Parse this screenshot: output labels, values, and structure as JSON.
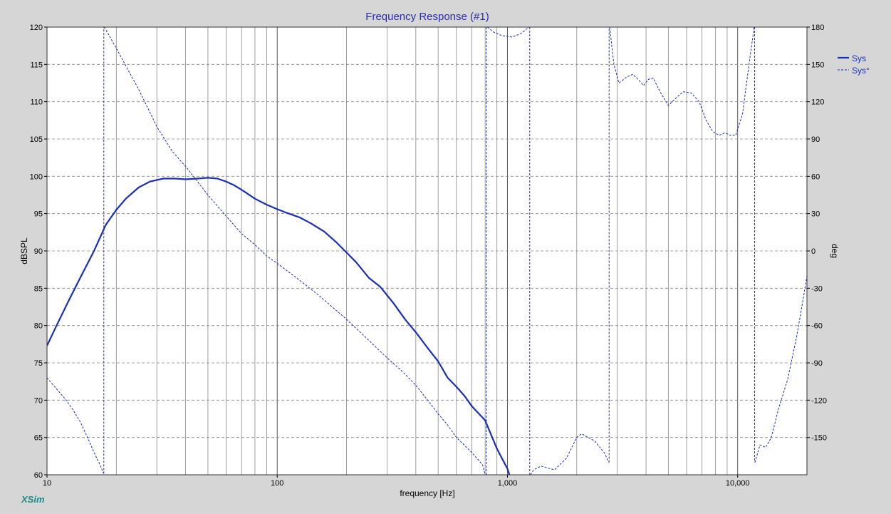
{
  "app_logo": "XSim",
  "chart_data": {
    "type": "line",
    "title": "Frequency Response (#1)",
    "xlabel": "frequency [Hz]",
    "ylabel": "dBSPL",
    "y2label": "deg",
    "x_scale": "log",
    "xlim": [
      10,
      20000
    ],
    "ylim": [
      60,
      120
    ],
    "y2lim": [
      -180,
      180
    ],
    "grid": true,
    "legend_position": "top-right",
    "x_tick_labels": [
      {
        "value": 10,
        "label": "10"
      },
      {
        "value": 100,
        "label": "100"
      },
      {
        "value": 1000,
        "label": "1,000"
      },
      {
        "value": 10000,
        "label": "10,000"
      }
    ],
    "y_ticks": [
      60,
      65,
      70,
      75,
      80,
      85,
      90,
      95,
      100,
      105,
      110,
      115,
      120
    ],
    "y2_ticks": [
      -150,
      -120,
      -90,
      -60,
      -30,
      0,
      30,
      60,
      90,
      120,
      150,
      180
    ],
    "y2_tick_labels": [
      "-150",
      "-120",
      "-90",
      "-60",
      "-30",
      "0",
      "30",
      "60",
      "90",
      "120",
      "150",
      "180"
    ],
    "colors": {
      "series": "#1a2fb8",
      "title": "#2b2bb0",
      "grid_major": "#555555",
      "grid_minor": "#888888",
      "plot_bg": "#ffffff",
      "frame_bg": "#d6d6d6",
      "logo": "#1a8a8a"
    },
    "series": [
      {
        "name": "Sys",
        "axis": "left",
        "style": "solid",
        "points": [
          [
            10,
            77.3
          ],
          [
            11,
            80
          ],
          [
            12.5,
            83.5
          ],
          [
            14,
            86.5
          ],
          [
            16,
            90
          ],
          [
            18,
            93.5
          ],
          [
            20,
            95.5
          ],
          [
            22,
            97
          ],
          [
            25,
            98.5
          ],
          [
            28,
            99.3
          ],
          [
            32,
            99.7
          ],
          [
            36,
            99.7
          ],
          [
            40,
            99.6
          ],
          [
            45,
            99.7
          ],
          [
            50,
            99.8
          ],
          [
            55,
            99.7
          ],
          [
            60,
            99.3
          ],
          [
            65,
            98.8
          ],
          [
            70,
            98.2
          ],
          [
            80,
            97
          ],
          [
            90,
            96.2
          ],
          [
            100,
            95.6
          ],
          [
            110,
            95.1
          ],
          [
            125,
            94.5
          ],
          [
            140,
            93.7
          ],
          [
            160,
            92.6
          ],
          [
            180,
            91.2
          ],
          [
            200,
            89.8
          ],
          [
            220,
            88.5
          ],
          [
            250,
            86.4
          ],
          [
            280,
            85.2
          ],
          [
            320,
            83
          ],
          [
            360,
            80.8
          ],
          [
            400,
            79.1
          ],
          [
            450,
            77
          ],
          [
            500,
            75.2
          ],
          [
            550,
            73
          ],
          [
            600,
            71.8
          ],
          [
            650,
            70.6
          ],
          [
            700,
            69.2
          ],
          [
            800,
            67.3
          ],
          [
            900,
            63.5
          ],
          [
            1000,
            60.8
          ],
          [
            1020,
            60
          ]
        ]
      },
      {
        "name": "Sys°",
        "axis": "right",
        "style": "dashed",
        "segments": [
          [
            [
              10,
              -102
            ],
            [
              11,
              -111
            ],
            [
              12,
              -119
            ],
            [
              13,
              -128
            ],
            [
              14,
              -138
            ],
            [
              15,
              -150
            ],
            [
              16,
              -162
            ],
            [
              17,
              -172
            ],
            [
              17.6,
              -179
            ]
          ],
          [
            [
              17.7,
              180
            ],
            [
              18,
              178
            ],
            [
              20,
              163
            ],
            [
              25,
              130
            ],
            [
              30,
              100
            ],
            [
              35,
              80
            ],
            [
              40,
              68
            ],
            [
              50,
              45
            ],
            [
              60,
              28
            ],
            [
              70,
              14
            ],
            [
              80,
              5
            ],
            [
              90,
              -4
            ],
            [
              100,
              -10
            ],
            [
              120,
              -21
            ],
            [
              150,
              -35
            ],
            [
              200,
              -55
            ],
            [
              250,
              -72
            ],
            [
              300,
              -86
            ],
            [
              350,
              -97
            ],
            [
              400,
              -108
            ],
            [
              450,
              -120
            ],
            [
              500,
              -131
            ],
            [
              550,
              -140
            ],
            [
              600,
              -150
            ],
            [
              700,
              -162
            ],
            [
              780,
              -172
            ],
            [
              800,
              -180
            ]
          ],
          [
            [
              820,
              180
            ],
            [
              870,
              176
            ],
            [
              950,
              173
            ],
            [
              1050,
              172
            ],
            [
              1150,
              175
            ],
            [
              1240,
              180
            ]
          ],
          [
            [
              1260,
              -180
            ],
            [
              1300,
              -176
            ],
            [
              1400,
              -173
            ],
            [
              1600,
              -176
            ],
            [
              1800,
              -167
            ],
            [
              2000,
              -150
            ],
            [
              2100,
              -147
            ],
            [
              2400,
              -153
            ],
            [
              2650,
              -163
            ],
            [
              2750,
              -170
            ]
          ],
          [
            [
              2780,
              180
            ],
            [
              2900,
              150
            ],
            [
              3050,
              135
            ],
            [
              3300,
              140
            ],
            [
              3500,
              142
            ],
            [
              3700,
              138
            ],
            [
              3900,
              133
            ],
            [
              4100,
              138
            ],
            [
              4300,
              139
            ],
            [
              4600,
              128
            ],
            [
              5000,
              117
            ],
            [
              5400,
              123
            ],
            [
              5800,
              128
            ],
            [
              6300,
              127
            ],
            [
              6800,
              120
            ],
            [
              7300,
              105
            ],
            [
              7800,
              96
            ],
            [
              8300,
              93
            ],
            [
              8800,
              95
            ],
            [
              9300,
              93
            ],
            [
              9800,
              93
            ],
            [
              10500,
              110
            ],
            [
              11200,
              150
            ],
            [
              11700,
              175
            ],
            [
              11800,
              180
            ]
          ],
          [
            [
              11900,
              -170
            ],
            [
              12500,
              -156
            ],
            [
              13200,
              -158
            ],
            [
              14000,
              -150
            ],
            [
              15000,
              -128
            ],
            [
              16500,
              -103
            ],
            [
              18000,
              -70
            ],
            [
              19000,
              -45
            ],
            [
              20000,
              -20
            ],
            [
              21000,
              0
            ]
          ]
        ]
      }
    ]
  }
}
